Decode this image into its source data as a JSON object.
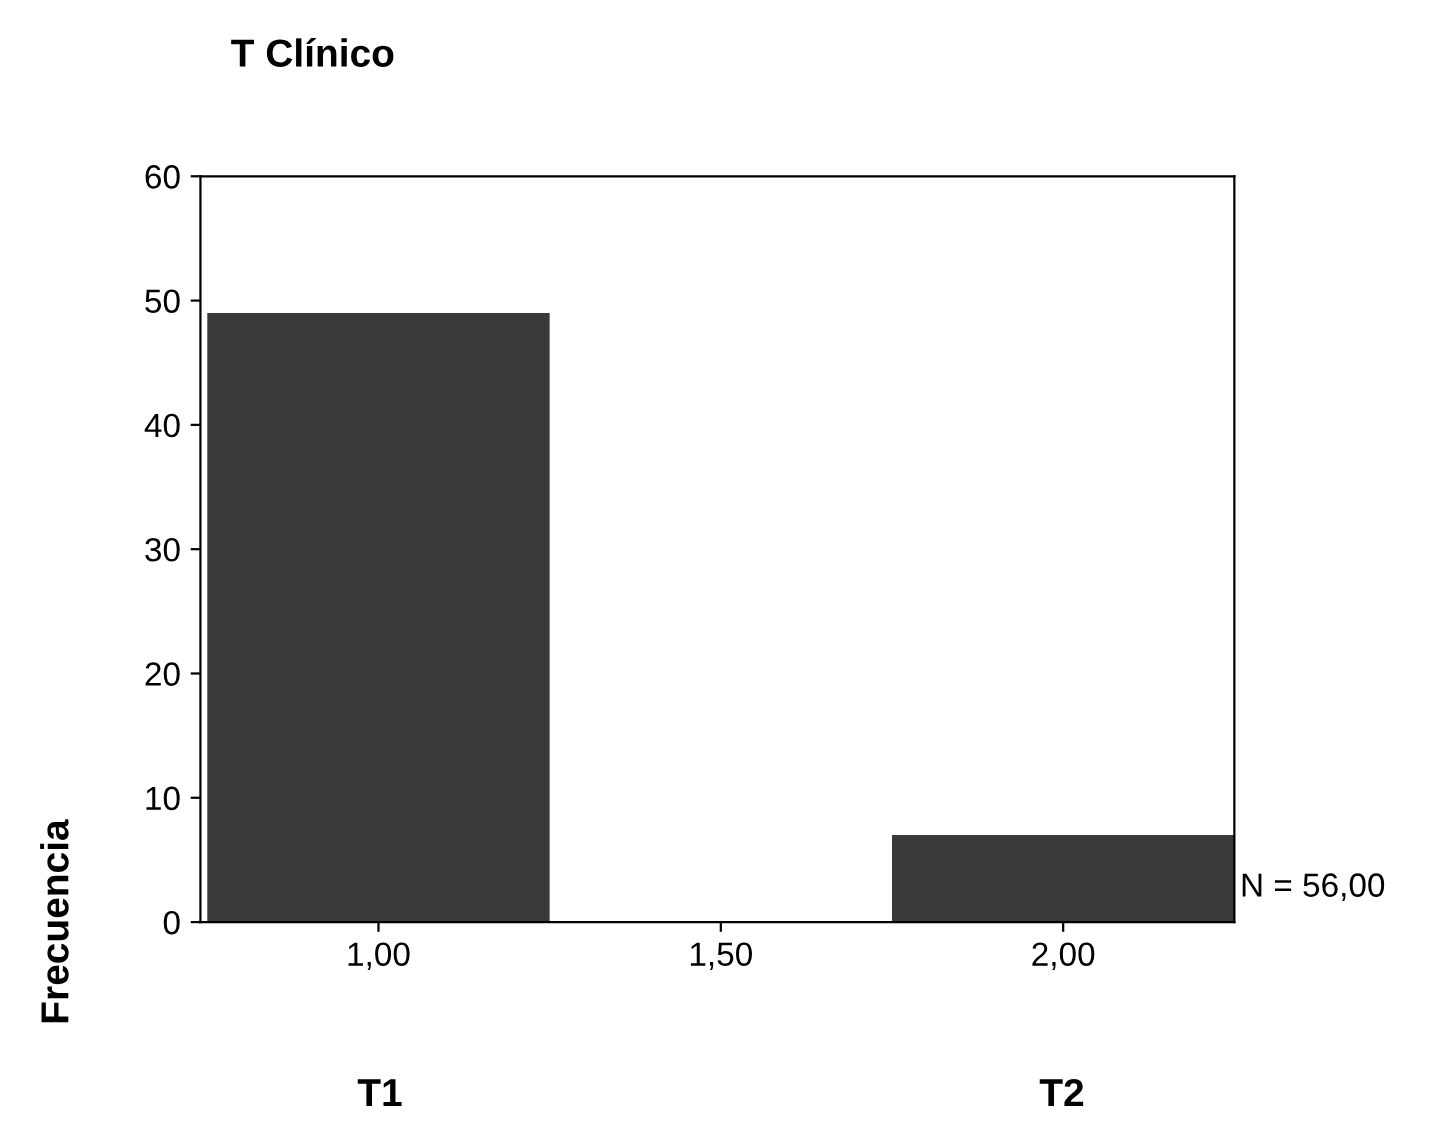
{
  "chart_data": {
    "type": "histogram",
    "title": "T Clínico",
    "ylabel": "Frecuencia",
    "bins": [
      0.75,
      1.25,
      1.75,
      2.25
    ],
    "values": [
      49,
      0,
      7
    ],
    "color": "#3a3a3a",
    "xlim": [
      0.74,
      2.25
    ],
    "ylim": [
      0,
      60
    ],
    "xticks": [
      {
        "value": 1,
        "label": "1,00"
      },
      {
        "value": 1.5,
        "label": "1,50"
      },
      {
        "value": 2,
        "label": "2,00"
      }
    ],
    "yticks": [
      0,
      10,
      20,
      30,
      40,
      50,
      60
    ],
    "grid": false,
    "legend": false,
    "annotations": [
      "T1",
      "T2",
      "N = 56,00"
    ]
  }
}
